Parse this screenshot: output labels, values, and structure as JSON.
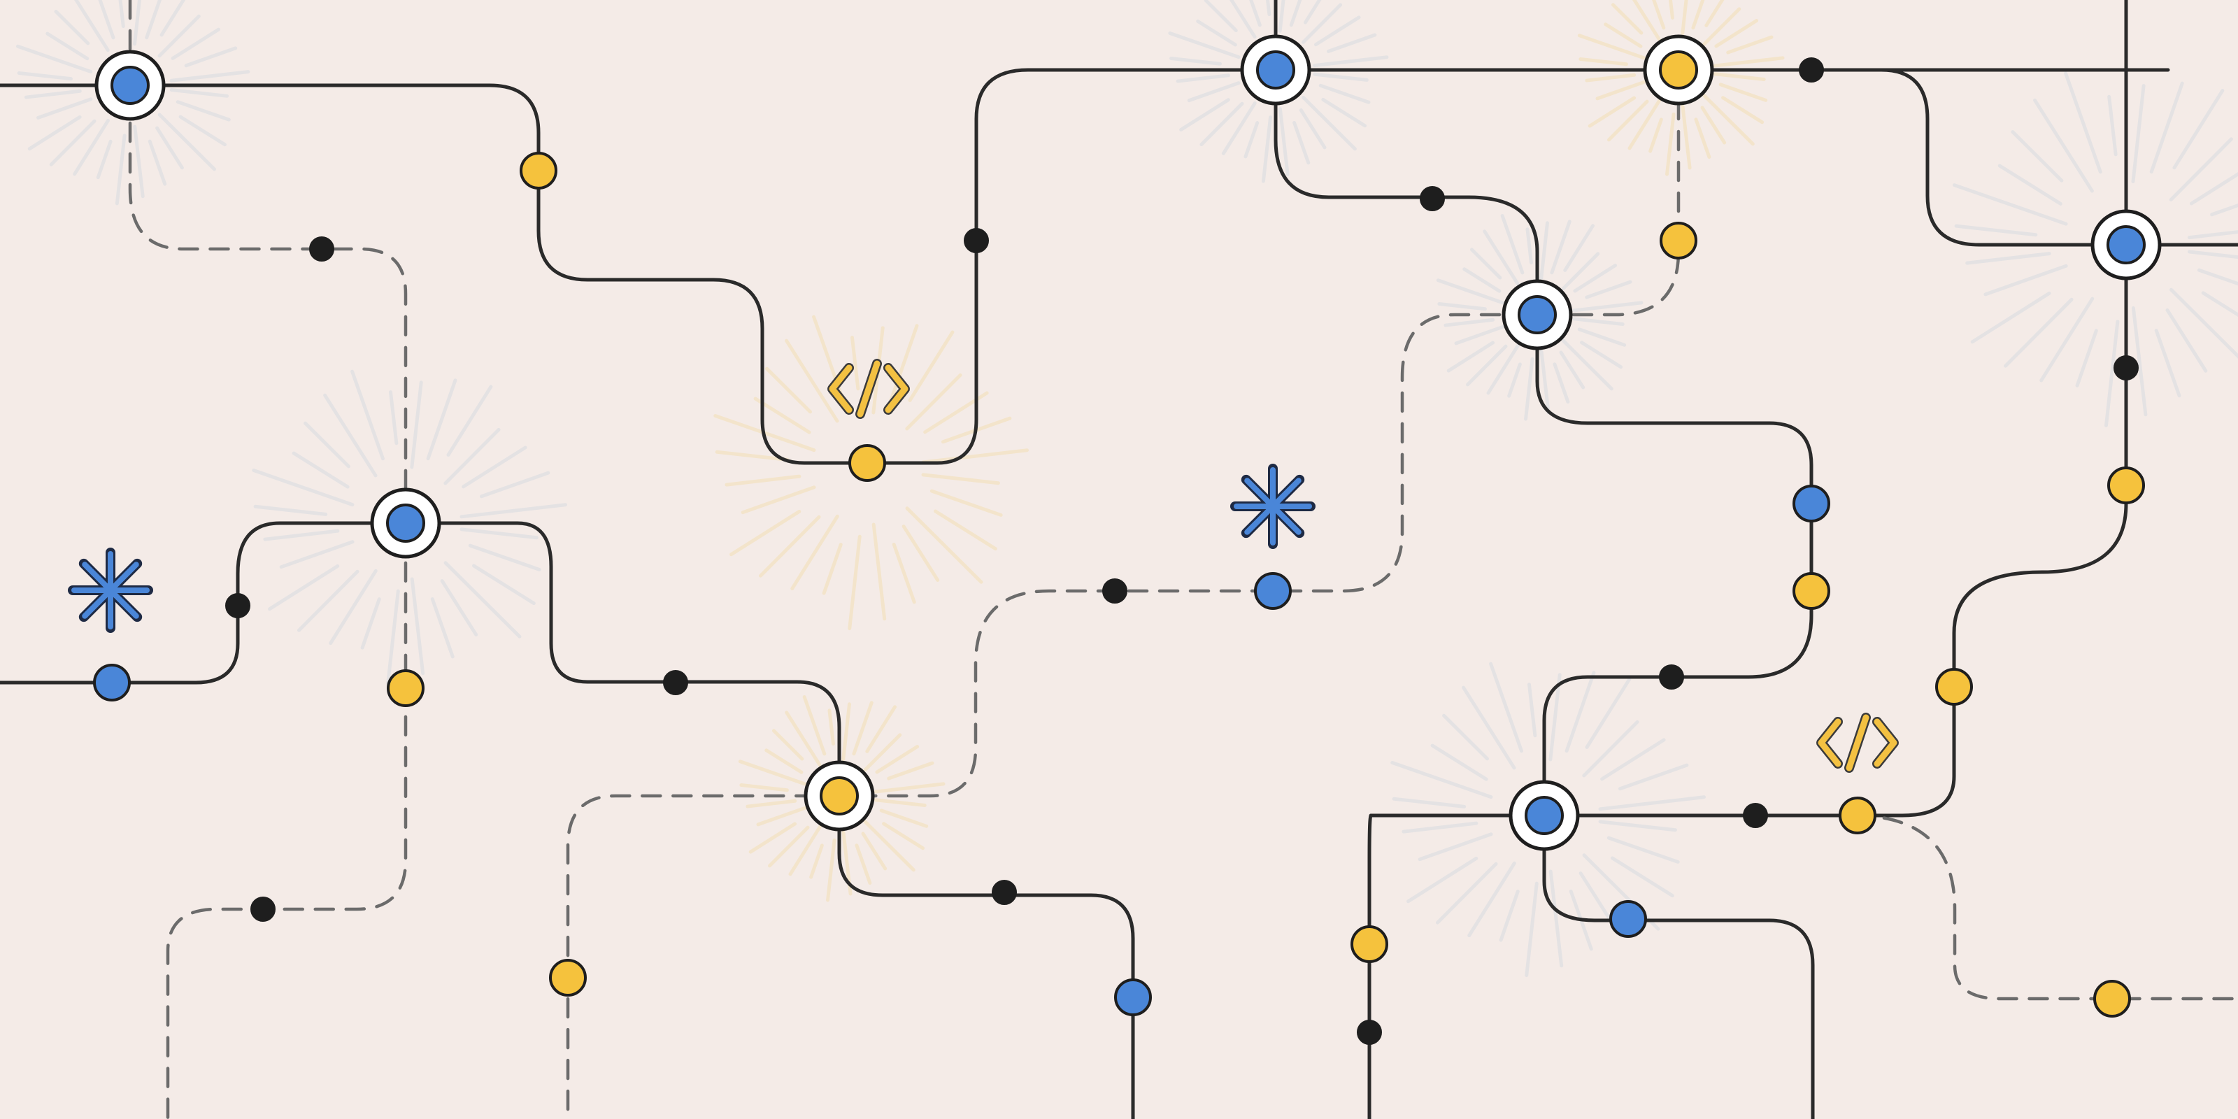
{
  "palette": {
    "background": "#f4ebe7",
    "line": "#2a2a2a",
    "dashed_line": "#6b6b6b",
    "blue": "#4a86d8",
    "yellow": "#f5c23d",
    "black": "#1e1e1e",
    "ray_blue": "#c9d3de",
    "ray_yellow": "#f3d99a"
  },
  "icons": {
    "code_icon": "code-brackets-icon",
    "asterisk_icon": "asterisk-icon",
    "hub_icon": "hub-node-icon",
    "dot_icon": "station-dot-icon"
  }
}
